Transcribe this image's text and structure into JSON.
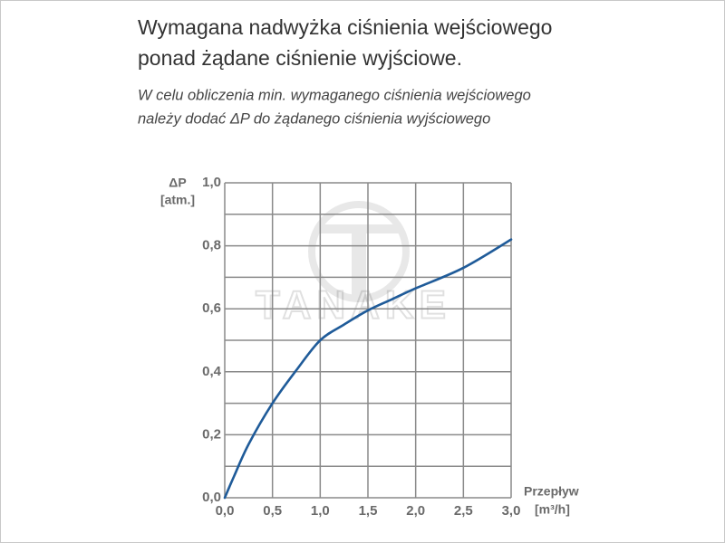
{
  "chart_data": {
    "type": "line",
    "title": [
      "Wymagana nadwyżka ciśnienia wejściowego",
      "ponad żądane ciśnienie wyjściowe."
    ],
    "subtitle": [
      "W celu obliczenia min. wymaganego ciśnienia wejściowego",
      "należy dodać ΔP do żądanego ciśnienia wyjściowego"
    ],
    "y_label": [
      "ΔP",
      "[atm.]"
    ],
    "x_label": [
      "Przepływ",
      "[m³/h]"
    ],
    "watermark": "TANAKE",
    "x": [
      0,
      0.1,
      0.25,
      0.5,
      0.75,
      1.0,
      1.25,
      1.5,
      1.75,
      2.0,
      2.5,
      3.0
    ],
    "series": [
      {
        "color": "#1f5b99",
        "values": [
          0,
          0.07,
          0.17,
          0.3,
          0.405,
          0.5,
          0.55,
          0.595,
          0.63,
          0.665,
          0.73,
          0.82
        ]
      }
    ],
    "xlim": [
      0,
      3.0
    ],
    "ylim": [
      0,
      1.0
    ],
    "xticks": [
      {
        "value": 0,
        "label": "0,0"
      },
      {
        "value": 0.5,
        "label": "0,5"
      },
      {
        "value": 1.0,
        "label": "1,0"
      },
      {
        "value": 1.5,
        "label": "1,5"
      },
      {
        "value": 2.0,
        "label": "2,0"
      },
      {
        "value": 2.5,
        "label": "2,5"
      },
      {
        "value": 3.0,
        "label": "3,0"
      }
    ],
    "yticks": [
      {
        "value": 0,
        "label": "0,0"
      },
      {
        "value": 0.2,
        "label": "0,2"
      },
      {
        "value": 0.4,
        "label": "0,4"
      },
      {
        "value": 0.6,
        "label": "0,6"
      },
      {
        "value": 0.8,
        "label": "0,8"
      },
      {
        "value": 1.0,
        "label": "1,0"
      }
    ],
    "y_minor_grid": [
      0.1,
      0.3,
      0.5,
      0.7,
      0.9
    ],
    "grid": true
  }
}
